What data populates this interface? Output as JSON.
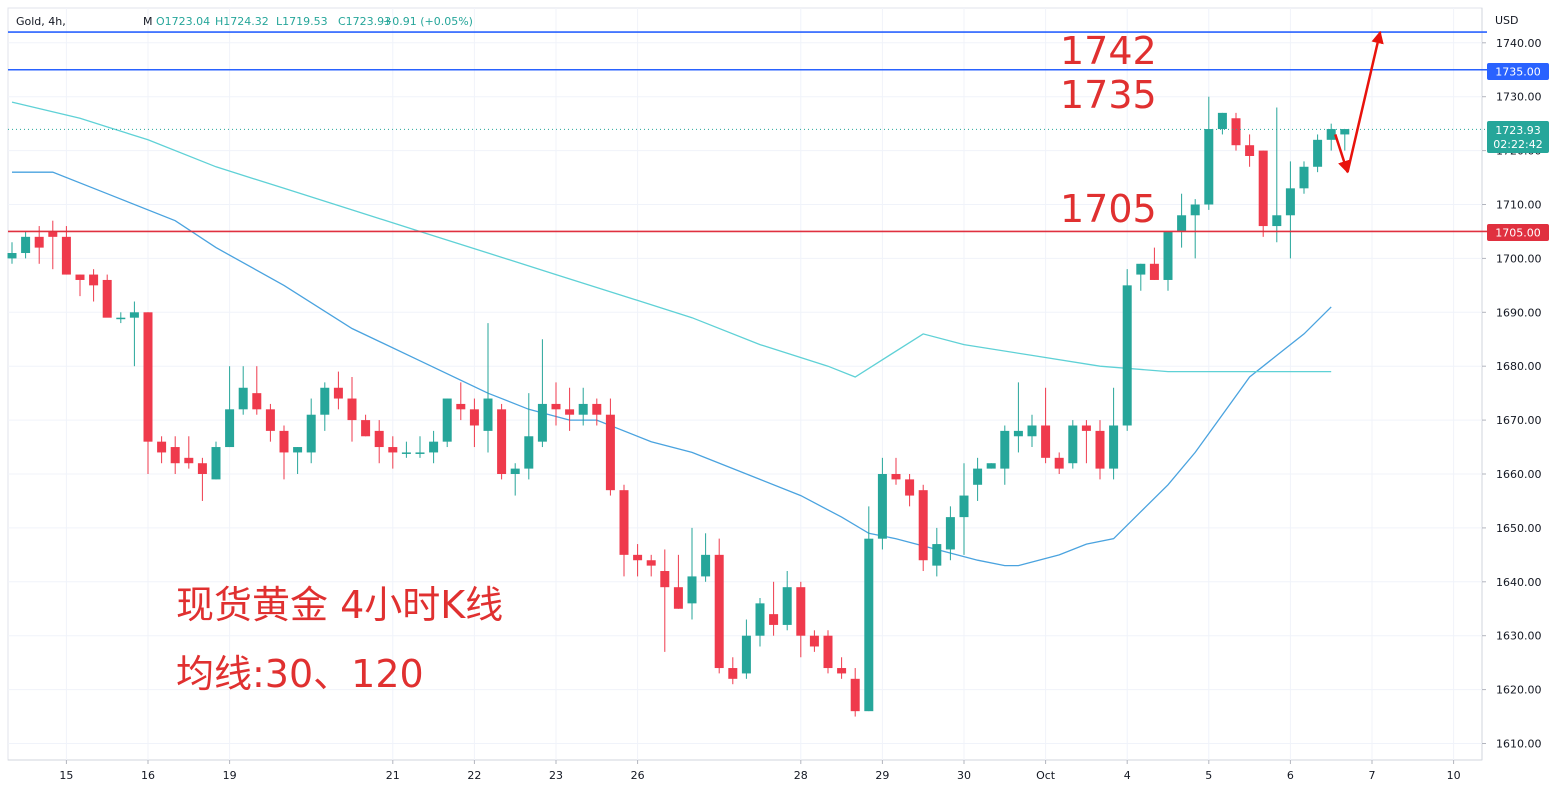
{
  "header": {
    "symbol": "Gold, 4h,",
    "ohlc_m": "M",
    "open": "O1723.04",
    "high": "H1724.32",
    "low": "L1719.53",
    "close": "C1723.93",
    "change": "+0.91 (+0.05%)"
  },
  "currency": "USD",
  "annotations": {
    "level_1742": "1742",
    "level_1735": "1735",
    "level_1705": "1705",
    "title_line1": "现货黄金 4小时K线",
    "title_line2": "均线:30、120"
  },
  "price_badges": {
    "upper_line": "1735.00",
    "support_line": "1705.00",
    "last_price": "1723.93",
    "countdown": "02:22:42"
  },
  "colors": {
    "up": "#26a69a",
    "down": "#ef3a4c",
    "resistance_line": "#2962ff",
    "support_line": "#e0303f",
    "ma30": "#4aa3df",
    "ma120": "#5fd1d6",
    "arrow": "#e8120c",
    "annotation_text": "#e03030"
  },
  "chart_data": {
    "type": "candlestick",
    "instrument": "Gold",
    "timeframe": "4h",
    "y_axis": {
      "ylim": [
        1605,
        1745
      ],
      "ticks": [
        1610,
        1620,
        1630,
        1640,
        1650,
        1660,
        1670,
        1680,
        1690,
        1700,
        1710,
        1720,
        1730,
        1740
      ]
    },
    "x_axis": {
      "ticks": [
        {
          "label": "15",
          "bar": 4
        },
        {
          "label": "16",
          "bar": 10
        },
        {
          "label": "19",
          "bar": 16
        },
        {
          "label": "21",
          "bar": 28
        },
        {
          "label": "22",
          "bar": 34
        },
        {
          "label": "23",
          "bar": 40
        },
        {
          "label": "26",
          "bar": 46
        },
        {
          "label": "28",
          "bar": 58
        },
        {
          "label": "29",
          "bar": 64
        },
        {
          "label": "30",
          "bar": 70
        },
        {
          "label": "Oct",
          "bar": 76
        },
        {
          "label": "4",
          "bar": 82
        },
        {
          "label": "5",
          "bar": 88
        },
        {
          "label": "6",
          "bar": 94
        },
        {
          "label": "7",
          "bar": 100
        },
        {
          "label": "10",
          "bar": 106
        }
      ]
    },
    "horizontal_lines": [
      {
        "label": "1742",
        "value": 1742,
        "style": "resistance"
      },
      {
        "label": "1735",
        "value": 1735,
        "style": "resistance"
      },
      {
        "label": "1705",
        "value": 1705,
        "style": "support"
      }
    ],
    "last_price": 1723.93,
    "candles": [
      [
        1700,
        1703,
        1699,
        1701
      ],
      [
        1701,
        1705,
        1700,
        1704
      ],
      [
        1704,
        1706,
        1699,
        1702
      ],
      [
        1705,
        1707,
        1698,
        1704
      ],
      [
        1704,
        1706,
        1697,
        1697
      ],
      [
        1697,
        1697,
        1693,
        1696
      ],
      [
        1697,
        1698,
        1692,
        1695
      ],
      [
        1696,
        1697,
        1690,
        1689
      ],
      [
        1689,
        1690,
        1688,
        1689
      ],
      [
        1689,
        1692,
        1680,
        1690
      ],
      [
        1690,
        1690,
        1660,
        1666
      ],
      [
        1666,
        1667,
        1662,
        1664
      ],
      [
        1665,
        1667,
        1660,
        1662
      ],
      [
        1663,
        1667,
        1661,
        1662
      ],
      [
        1662,
        1663,
        1655,
        1660
      ],
      [
        1659,
        1666,
        1659,
        1665
      ],
      [
        1665,
        1680,
        1665,
        1672
      ],
      [
        1672,
        1680,
        1671,
        1676
      ],
      [
        1675,
        1680,
        1671,
        1672
      ],
      [
        1672,
        1673,
        1666,
        1668
      ],
      [
        1668,
        1669,
        1659,
        1664
      ],
      [
        1664,
        1665,
        1660,
        1665
      ],
      [
        1664,
        1674,
        1662,
        1671
      ],
      [
        1671,
        1677,
        1668,
        1676
      ],
      [
        1676,
        1679,
        1672,
        1674
      ],
      [
        1674,
        1678,
        1666,
        1670
      ],
      [
        1670,
        1671,
        1667,
        1667
      ],
      [
        1668,
        1670,
        1662,
        1665
      ],
      [
        1665,
        1667,
        1661,
        1664
      ],
      [
        1664,
        1666,
        1663,
        1664
      ],
      [
        1664,
        1667,
        1663,
        1664
      ],
      [
        1664,
        1668,
        1662,
        1666
      ],
      [
        1666,
        1674,
        1665,
        1674
      ],
      [
        1673,
        1677,
        1670,
        1672
      ],
      [
        1672,
        1674,
        1665,
        1669
      ],
      [
        1668,
        1688,
        1664,
        1674
      ],
      [
        1672,
        1673,
        1659,
        1660
      ],
      [
        1660,
        1662,
        1656,
        1661
      ],
      [
        1661,
        1675,
        1659,
        1667
      ],
      [
        1666,
        1685,
        1665,
        1673
      ],
      [
        1673,
        1677,
        1669,
        1672
      ],
      [
        1672,
        1676,
        1668,
        1671
      ],
      [
        1671,
        1676,
        1669,
        1673
      ],
      [
        1673,
        1674,
        1669,
        1671
      ],
      [
        1671,
        1674,
        1656,
        1657
      ],
      [
        1657,
        1658,
        1641,
        1645
      ],
      [
        1645,
        1647,
        1641,
        1644
      ],
      [
        1644,
        1645,
        1641,
        1643
      ],
      [
        1642,
        1646,
        1627,
        1639
      ],
      [
        1639,
        1645,
        1635,
        1635
      ],
      [
        1636,
        1650,
        1633,
        1641
      ],
      [
        1641,
        1649,
        1640,
        1645
      ],
      [
        1645,
        1648,
        1623,
        1624
      ],
      [
        1624,
        1626,
        1621,
        1622
      ],
      [
        1623,
        1633,
        1622,
        1630
      ],
      [
        1630,
        1637,
        1628,
        1636
      ],
      [
        1634,
        1640,
        1630,
        1632
      ],
      [
        1632,
        1642,
        1631,
        1639
      ],
      [
        1639,
        1640,
        1626,
        1630
      ],
      [
        1630,
        1631,
        1627,
        1628
      ],
      [
        1630,
        1631,
        1623,
        1624
      ],
      [
        1624,
        1626,
        1622,
        1623
      ],
      [
        1622,
        1624,
        1615,
        1616
      ],
      [
        1616,
        1654,
        1616,
        1648
      ],
      [
        1648,
        1663,
        1646,
        1660
      ],
      [
        1660,
        1663,
        1658,
        1659
      ],
      [
        1659,
        1660,
        1654,
        1656
      ],
      [
        1657,
        1658,
        1642,
        1644
      ],
      [
        1643,
        1650,
        1641,
        1647
      ],
      [
        1646,
        1654,
        1644,
        1652
      ],
      [
        1652,
        1662,
        1645,
        1656
      ],
      [
        1658,
        1663,
        1655,
        1661
      ],
      [
        1661,
        1662,
        1661,
        1662
      ],
      [
        1661,
        1669,
        1658,
        1668
      ],
      [
        1667,
        1677,
        1664,
        1668
      ],
      [
        1667,
        1671,
        1665,
        1669
      ],
      [
        1669,
        1676,
        1662,
        1663
      ],
      [
        1663,
        1664,
        1660,
        1661
      ],
      [
        1662,
        1670,
        1661,
        1669
      ],
      [
        1669,
        1670,
        1662,
        1668
      ],
      [
        1668,
        1670,
        1659,
        1661
      ],
      [
        1661,
        1676,
        1659,
        1669
      ],
      [
        1669,
        1698,
        1668,
        1695
      ],
      [
        1697,
        1699,
        1694,
        1699
      ],
      [
        1699,
        1702,
        1696,
        1696
      ],
      [
        1696,
        1704,
        1694,
        1705
      ],
      [
        1705,
        1712,
        1702,
        1708
      ],
      [
        1708,
        1711,
        1700,
        1710
      ],
      [
        1710,
        1730,
        1709,
        1724
      ],
      [
        1724,
        1727,
        1723,
        1727
      ],
      [
        1726,
        1727,
        1720,
        1721
      ],
      [
        1721,
        1723,
        1717,
        1719
      ],
      [
        1720,
        1720,
        1704,
        1706
      ],
      [
        1706,
        1728,
        1703,
        1708
      ],
      [
        1708,
        1718,
        1700,
        1713
      ],
      [
        1713,
        1718,
        1712,
        1717
      ],
      [
        1717,
        1723,
        1716,
        1722
      ],
      [
        1722,
        1725,
        1720,
        1724
      ],
      [
        1723,
        1724,
        1720,
        1724
      ]
    ],
    "series": [
      {
        "name": "MA30",
        "points": [
          [
            0,
            1716
          ],
          [
            3,
            1716
          ],
          [
            7,
            1712
          ],
          [
            12,
            1707
          ],
          [
            15,
            1702
          ],
          [
            20,
            1695
          ],
          [
            25,
            1687
          ],
          [
            30,
            1681
          ],
          [
            35,
            1675
          ],
          [
            38,
            1672
          ],
          [
            41,
            1670
          ],
          [
            43,
            1670
          ],
          [
            47,
            1666
          ],
          [
            50,
            1664
          ],
          [
            55,
            1659
          ],
          [
            58,
            1656
          ],
          [
            61,
            1652
          ],
          [
            63,
            1649
          ],
          [
            65,
            1648
          ],
          [
            68,
            1646
          ],
          [
            71,
            1644
          ],
          [
            73,
            1643
          ],
          [
            74,
            1643
          ],
          [
            77,
            1645
          ],
          [
            79,
            1647
          ],
          [
            81,
            1648
          ],
          [
            83,
            1653
          ],
          [
            85,
            1658
          ],
          [
            87,
            1664
          ],
          [
            89,
            1671
          ],
          [
            91,
            1678
          ],
          [
            93,
            1682
          ],
          [
            95,
            1686
          ],
          [
            97,
            1691
          ]
        ]
      },
      {
        "name": "MA120",
        "points": [
          [
            0,
            1729
          ],
          [
            5,
            1726
          ],
          [
            10,
            1722
          ],
          [
            15,
            1717
          ],
          [
            20,
            1713
          ],
          [
            25,
            1709
          ],
          [
            30,
            1705
          ],
          [
            35,
            1701
          ],
          [
            40,
            1697
          ],
          [
            45,
            1693
          ],
          [
            50,
            1689
          ],
          [
            55,
            1684
          ],
          [
            60,
            1680
          ],
          [
            62,
            1678
          ],
          [
            67,
            1686
          ],
          [
            70,
            1684
          ],
          [
            75,
            1682
          ],
          [
            80,
            1680
          ],
          [
            85,
            1679
          ],
          [
            88,
            1679
          ],
          [
            91,
            1679
          ],
          [
            94,
            1679
          ],
          [
            97,
            1679
          ]
        ]
      }
    ],
    "arrows": [
      {
        "from_bar": 97.3,
        "from_value": 1723,
        "to_bar": 98.2,
        "to_value": 1716,
        "direction": "down"
      },
      {
        "from_bar": 98.2,
        "from_value": 1716,
        "to_bar": 100.6,
        "to_value": 1742,
        "direction": "up"
      }
    ]
  }
}
